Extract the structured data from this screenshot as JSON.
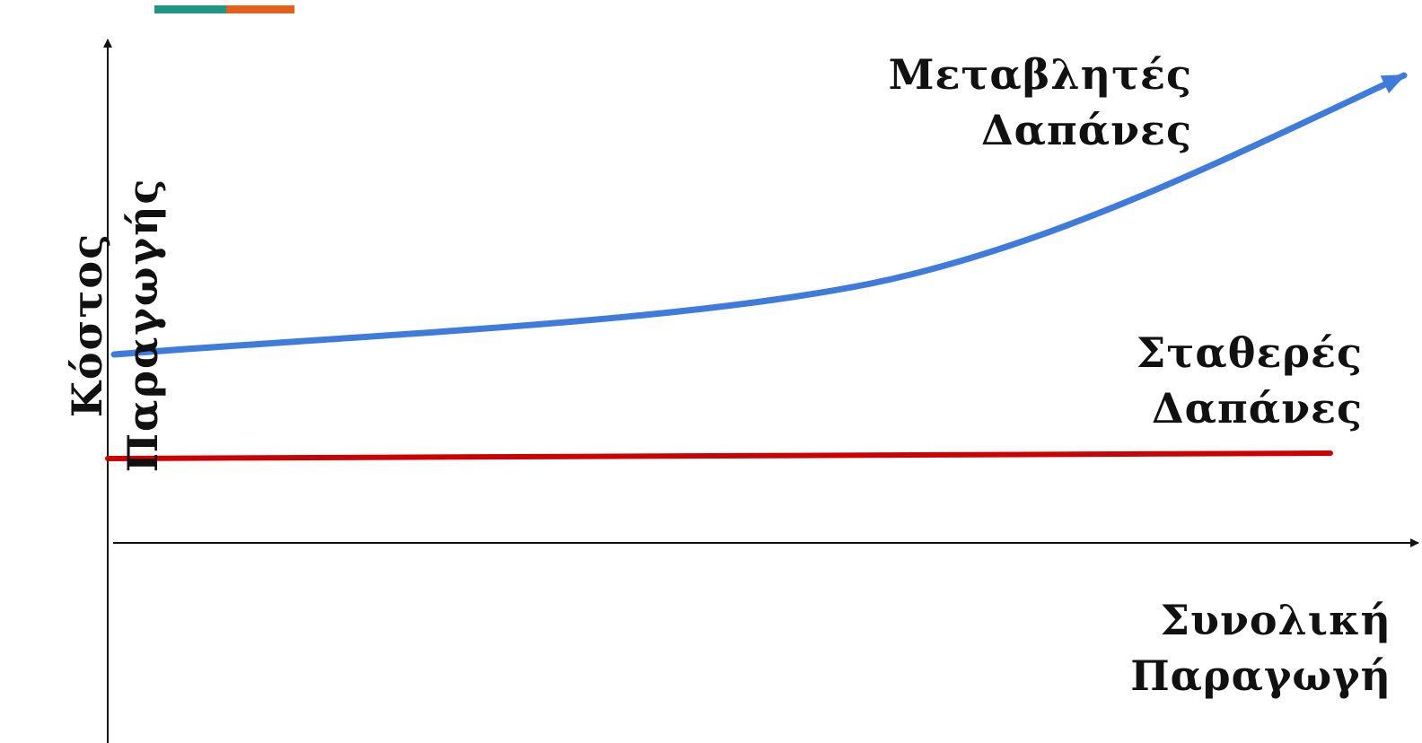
{
  "colors": {
    "accent_teal": "#1f9682",
    "accent_orange": "#e3601a",
    "variable_cost_line": "#3f7bdb",
    "fixed_cost_line": "#cc0000",
    "axis": "#111111"
  },
  "y_axis": {
    "line1": "Κόστος",
    "line2": "Παραγωγής"
  },
  "x_axis": {
    "line1": "Συνολική",
    "line2": "Παραγωγή"
  },
  "variable_costs": {
    "line1": "Μεταβλητές",
    "line2": "Δαπάνες"
  },
  "fixed_costs": {
    "line1": "Σταθερές",
    "line2": "Δαπάνες"
  }
}
